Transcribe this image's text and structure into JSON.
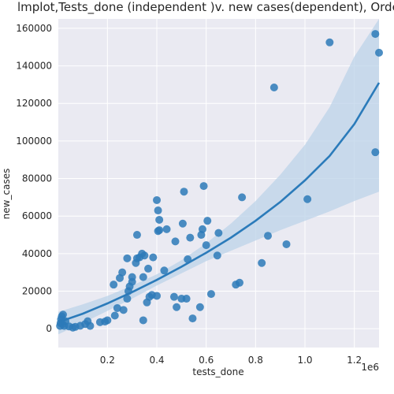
{
  "chart_data": {
    "type": "scatter",
    "title": "lmplot,Tests_done (independent )v. new cases(dependent), Orde",
    "xlabel": "tests_done",
    "ylabel": "new_cases",
    "x_offset_label": "1e6",
    "xlim": [
      1000,
      1300000
    ],
    "ylim": [
      -10000,
      165000
    ],
    "x_ticks": [
      200000,
      400000,
      600000,
      800000,
      1000000,
      1200000
    ],
    "x_tick_labels": [
      "0.2",
      "0.4",
      "0.6",
      "0.8",
      "1.0",
      "1.2"
    ],
    "y_ticks": [
      0,
      20000,
      40000,
      60000,
      80000,
      100000,
      120000,
      140000,
      160000
    ],
    "y_tick_labels": [
      "0",
      "20000",
      "40000",
      "60000",
      "80000",
      "100000",
      "120000",
      "140000",
      "160000"
    ],
    "grid": true,
    "colors": {
      "background": "#eaeaf2",
      "points": "#2d7ab8",
      "fit_line": "#2b7bba",
      "confidence_band": "#bcd3e8"
    },
    "points": [
      {
        "x": 8000,
        "y": 1500
      },
      {
        "x": 10000,
        "y": 3000
      },
      {
        "x": 12000,
        "y": 5000
      },
      {
        "x": 15000,
        "y": 6500
      },
      {
        "x": 20000,
        "y": 7500
      },
      {
        "x": 18000,
        "y": 2500
      },
      {
        "x": 25000,
        "y": 1500
      },
      {
        "x": 30000,
        "y": 4000
      },
      {
        "x": 45000,
        "y": 1200
      },
      {
        "x": 60000,
        "y": 600
      },
      {
        "x": 70000,
        "y": 1000
      },
      {
        "x": 90000,
        "y": 1600
      },
      {
        "x": 110000,
        "y": 2500
      },
      {
        "x": 120000,
        "y": 4000
      },
      {
        "x": 130000,
        "y": 1500
      },
      {
        "x": 170000,
        "y": 3500
      },
      {
        "x": 190000,
        "y": 3800
      },
      {
        "x": 200000,
        "y": 4500
      },
      {
        "x": 230000,
        "y": 7000
      },
      {
        "x": 240000,
        "y": 11000
      },
      {
        "x": 225000,
        "y": 23500
      },
      {
        "x": 250000,
        "y": 27000
      },
      {
        "x": 260000,
        "y": 30000
      },
      {
        "x": 265000,
        "y": 10000
      },
      {
        "x": 280000,
        "y": 16000
      },
      {
        "x": 285000,
        "y": 20000
      },
      {
        "x": 290000,
        "y": 22500
      },
      {
        "x": 300000,
        "y": 25000
      },
      {
        "x": 300000,
        "y": 27500
      },
      {
        "x": 280000,
        "y": 37500
      },
      {
        "x": 315000,
        "y": 35000
      },
      {
        "x": 320000,
        "y": 37500
      },
      {
        "x": 330000,
        "y": 38000
      },
      {
        "x": 340000,
        "y": 40000
      },
      {
        "x": 350000,
        "y": 39000
      },
      {
        "x": 345000,
        "y": 27500
      },
      {
        "x": 320000,
        "y": 50000
      },
      {
        "x": 360000,
        "y": 14000
      },
      {
        "x": 370000,
        "y": 17000
      },
      {
        "x": 380000,
        "y": 18000
      },
      {
        "x": 365000,
        "y": 32000
      },
      {
        "x": 385000,
        "y": 38000
      },
      {
        "x": 345000,
        "y": 4500
      },
      {
        "x": 400000,
        "y": 68500
      },
      {
        "x": 405000,
        "y": 63000
      },
      {
        "x": 410000,
        "y": 58000
      },
      {
        "x": 405000,
        "y": 52000
      },
      {
        "x": 410000,
        "y": 52500
      },
      {
        "x": 400000,
        "y": 17500
      },
      {
        "x": 430000,
        "y": 31000
      },
      {
        "x": 440000,
        "y": 53000
      },
      {
        "x": 470000,
        "y": 17000
      },
      {
        "x": 480000,
        "y": 11500
      },
      {
        "x": 475000,
        "y": 46500
      },
      {
        "x": 500000,
        "y": 16000
      },
      {
        "x": 505000,
        "y": 56000
      },
      {
        "x": 510000,
        "y": 73000
      },
      {
        "x": 520000,
        "y": 16000
      },
      {
        "x": 525000,
        "y": 37000
      },
      {
        "x": 535000,
        "y": 48500
      },
      {
        "x": 545000,
        "y": 5500
      },
      {
        "x": 575000,
        "y": 11500
      },
      {
        "x": 580000,
        "y": 50000
      },
      {
        "x": 585000,
        "y": 53000
      },
      {
        "x": 590000,
        "y": 76000
      },
      {
        "x": 600000,
        "y": 44500
      },
      {
        "x": 605000,
        "y": 57500
      },
      {
        "x": 620000,
        "y": 18500
      },
      {
        "x": 645000,
        "y": 39000
      },
      {
        "x": 650000,
        "y": 51000
      },
      {
        "x": 720000,
        "y": 23500
      },
      {
        "x": 735000,
        "y": 24500
      },
      {
        "x": 745000,
        "y": 70000
      },
      {
        "x": 825000,
        "y": 35000
      },
      {
        "x": 850000,
        "y": 49500
      },
      {
        "x": 875000,
        "y": 128500
      },
      {
        "x": 925000,
        "y": 45000
      },
      {
        "x": 1010000,
        "y": 69000
      },
      {
        "x": 1100000,
        "y": 152500
      },
      {
        "x": 1285000,
        "y": 94000
      },
      {
        "x": 1285000,
        "y": 157000
      },
      {
        "x": 1300000,
        "y": 147000
      }
    ],
    "fit_line": {
      "x": [
        1000,
        100000,
        200000,
        300000,
        400000,
        500000,
        600000,
        700000,
        800000,
        900000,
        1000000,
        1100000,
        1200000,
        1300000
      ],
      "y": [
        3500,
        8000,
        13500,
        19500,
        26000,
        33000,
        40500,
        48500,
        57500,
        67500,
        79000,
        92000,
        109000,
        131000
      ]
    },
    "confidence_band": {
      "x": [
        1000,
        100000,
        200000,
        300000,
        400000,
        500000,
        600000,
        700000,
        800000,
        900000,
        1000000,
        1100000,
        1200000,
        1300000
      ],
      "lower": [
        -3000,
        3000,
        9500,
        16000,
        23000,
        29500,
        36000,
        41500,
        47000,
        52500,
        57500,
        62500,
        68000,
        73000
      ],
      "upper": [
        9000,
        13000,
        17500,
        23000,
        29000,
        36500,
        45500,
        56000,
        68000,
        82000,
        98000,
        118000,
        145000,
        165000
      ]
    }
  }
}
